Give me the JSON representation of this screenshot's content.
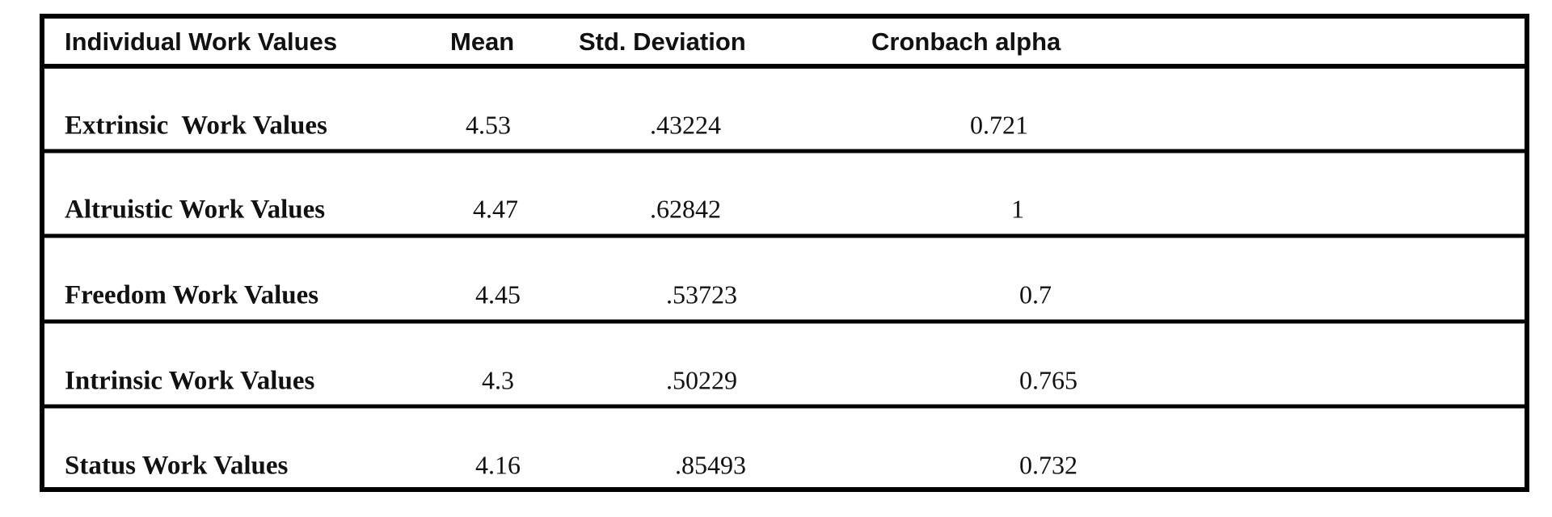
{
  "table": {
    "header": [
      "Individual Work Values",
      "Mean",
      "Std. Deviation",
      "Cronbach alpha"
    ],
    "rows": [
      [
        "Extrinsic  Work Values",
        "4.53",
        ".43224",
        "0.721"
      ],
      [
        "Altruistic Work Values",
        "4.47",
        ".62842",
        "1"
      ],
      [
        "Freedom Work Values",
        "4.45",
        ".53723",
        "0.7"
      ],
      [
        "Intrinsic Work Values",
        "4.3",
        ".50229",
        "0.765"
      ],
      [
        "Status Work Values",
        "4.16",
        ".85493",
        "0.732"
      ]
    ]
  }
}
